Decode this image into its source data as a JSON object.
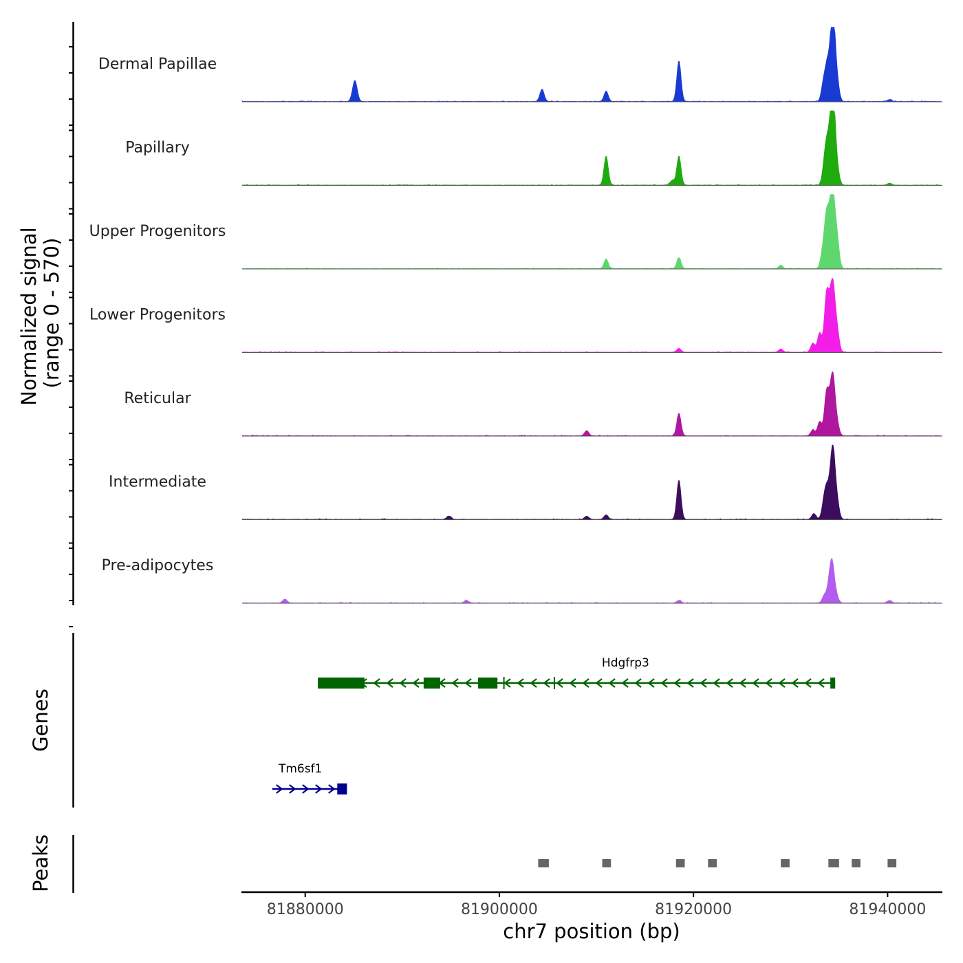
{
  "chart_data": {
    "type": "area",
    "title": "",
    "ylabel_line1": "Normalized signal",
    "ylabel_line2": "(range 0 - 570)",
    "xlabel": "chr7 position (bp)",
    "xlim": [
      81873500,
      81945500
    ],
    "ylim": [
      0,
      570
    ],
    "x_ticks": [
      81880000,
      81900000,
      81920000,
      81940000
    ],
    "x_tick_labels": [
      "81880000",
      "81900000",
      "81920000",
      "81940000"
    ],
    "tracks": [
      {
        "name": "Dermal Papillae",
        "color": "#1a3ad4",
        "peaks": [
          {
            "pos": 81885200,
            "height": 100
          },
          {
            "pos": 81885000,
            "height": 80
          },
          {
            "pos": 81904400,
            "height": 95
          },
          {
            "pos": 81911000,
            "height": 80
          },
          {
            "pos": 81918500,
            "height": 315
          },
          {
            "pos": 81933400,
            "height": 145
          },
          {
            "pos": 81933800,
            "height": 260
          },
          {
            "pos": 81934200,
            "height": 230
          },
          {
            "pos": 81934400,
            "height": 565
          },
          {
            "pos": 81934800,
            "height": 150
          },
          {
            "pos": 81940200,
            "height": 15
          }
        ]
      },
      {
        "name": "Papillary",
        "color": "#1faa0d",
        "peaks": [
          {
            "pos": 81911000,
            "height": 225
          },
          {
            "pos": 81917800,
            "height": 35
          },
          {
            "pos": 81918500,
            "height": 225
          },
          {
            "pos": 81933500,
            "height": 150
          },
          {
            "pos": 81933800,
            "height": 275
          },
          {
            "pos": 81934200,
            "height": 320
          },
          {
            "pos": 81934400,
            "height": 570
          },
          {
            "pos": 81934800,
            "height": 130
          },
          {
            "pos": 81940200,
            "height": 15
          }
        ]
      },
      {
        "name": "Upper Progenitors",
        "color": "#5ed86e",
        "peaks": [
          {
            "pos": 81911000,
            "height": 75
          },
          {
            "pos": 81918500,
            "height": 85
          },
          {
            "pos": 81929000,
            "height": 25
          },
          {
            "pos": 81933300,
            "height": 120
          },
          {
            "pos": 81933700,
            "height": 380
          },
          {
            "pos": 81934100,
            "height": 320
          },
          {
            "pos": 81934400,
            "height": 450
          },
          {
            "pos": 81934800,
            "height": 220
          }
        ]
      },
      {
        "name": "Lower Progenitors",
        "color": "#f21ee8",
        "peaks": [
          {
            "pos": 81918500,
            "height": 30
          },
          {
            "pos": 81929000,
            "height": 25
          },
          {
            "pos": 81932300,
            "height": 70
          },
          {
            "pos": 81933000,
            "height": 150
          },
          {
            "pos": 81933700,
            "height": 430
          },
          {
            "pos": 81934100,
            "height": 260
          },
          {
            "pos": 81934400,
            "height": 420
          },
          {
            "pos": 81934800,
            "height": 160
          }
        ]
      },
      {
        "name": "Reticular",
        "color": "#b0179f",
        "peaks": [
          {
            "pos": 81909000,
            "height": 40
          },
          {
            "pos": 81918500,
            "height": 175
          },
          {
            "pos": 81932300,
            "height": 45
          },
          {
            "pos": 81933000,
            "height": 110
          },
          {
            "pos": 81933700,
            "height": 320
          },
          {
            "pos": 81934100,
            "height": 200
          },
          {
            "pos": 81934400,
            "height": 385
          },
          {
            "pos": 81934800,
            "height": 90
          }
        ]
      },
      {
        "name": "Intermediate",
        "color": "#3c0d5e",
        "peaks": [
          {
            "pos": 81894800,
            "height": 25
          },
          {
            "pos": 81909000,
            "height": 25
          },
          {
            "pos": 81911000,
            "height": 35
          },
          {
            "pos": 81918500,
            "height": 305
          },
          {
            "pos": 81932400,
            "height": 45
          },
          {
            "pos": 81933400,
            "height": 95
          },
          {
            "pos": 81933700,
            "height": 200
          },
          {
            "pos": 81934100,
            "height": 210
          },
          {
            "pos": 81934400,
            "height": 470
          },
          {
            "pos": 81934800,
            "height": 130
          }
        ]
      },
      {
        "name": "Pre-adipocytes",
        "color": "#b25cf0",
        "peaks": [
          {
            "pos": 81877900,
            "height": 30
          },
          {
            "pos": 81896600,
            "height": 20
          },
          {
            "pos": 81918500,
            "height": 20
          },
          {
            "pos": 81933500,
            "height": 60
          },
          {
            "pos": 81934000,
            "height": 140
          },
          {
            "pos": 81934300,
            "height": 270
          },
          {
            "pos": 81934700,
            "height": 60
          },
          {
            "pos": 81940200,
            "height": 20
          }
        ]
      }
    ],
    "genes_title": "Genes",
    "genes": [
      {
        "name": "Hdgfrp3",
        "strand": "-",
        "color": "#006400",
        "start": 81881300,
        "end": 81934600,
        "exons": [
          [
            81881300,
            81886100
          ],
          [
            81892200,
            81893900
          ],
          [
            81897800,
            81899800
          ],
          [
            81900400,
            81900500
          ],
          [
            81905600,
            81905700
          ],
          [
            81934100,
            81934600
          ]
        ],
        "row": 1
      },
      {
        "name": "Tm6sf1",
        "strand": "+",
        "color": "#00008b",
        "start": 81876600,
        "end": 81884300,
        "exons": [
          [
            81883300,
            81884300
          ]
        ],
        "row": 2
      }
    ],
    "peaks_title": "Peaks",
    "peak_regions": [
      {
        "start": 81904000,
        "end": 81905100
      },
      {
        "start": 81910600,
        "end": 81911500
      },
      {
        "start": 81918200,
        "end": 81919100
      },
      {
        "start": 81921500,
        "end": 81922400
      },
      {
        "start": 81929000,
        "end": 81929900
      },
      {
        "start": 81933900,
        "end": 81935000
      },
      {
        "start": 81936300,
        "end": 81937200
      },
      {
        "start": 81940000,
        "end": 81940900
      }
    ],
    "peak_color": "#666666"
  }
}
